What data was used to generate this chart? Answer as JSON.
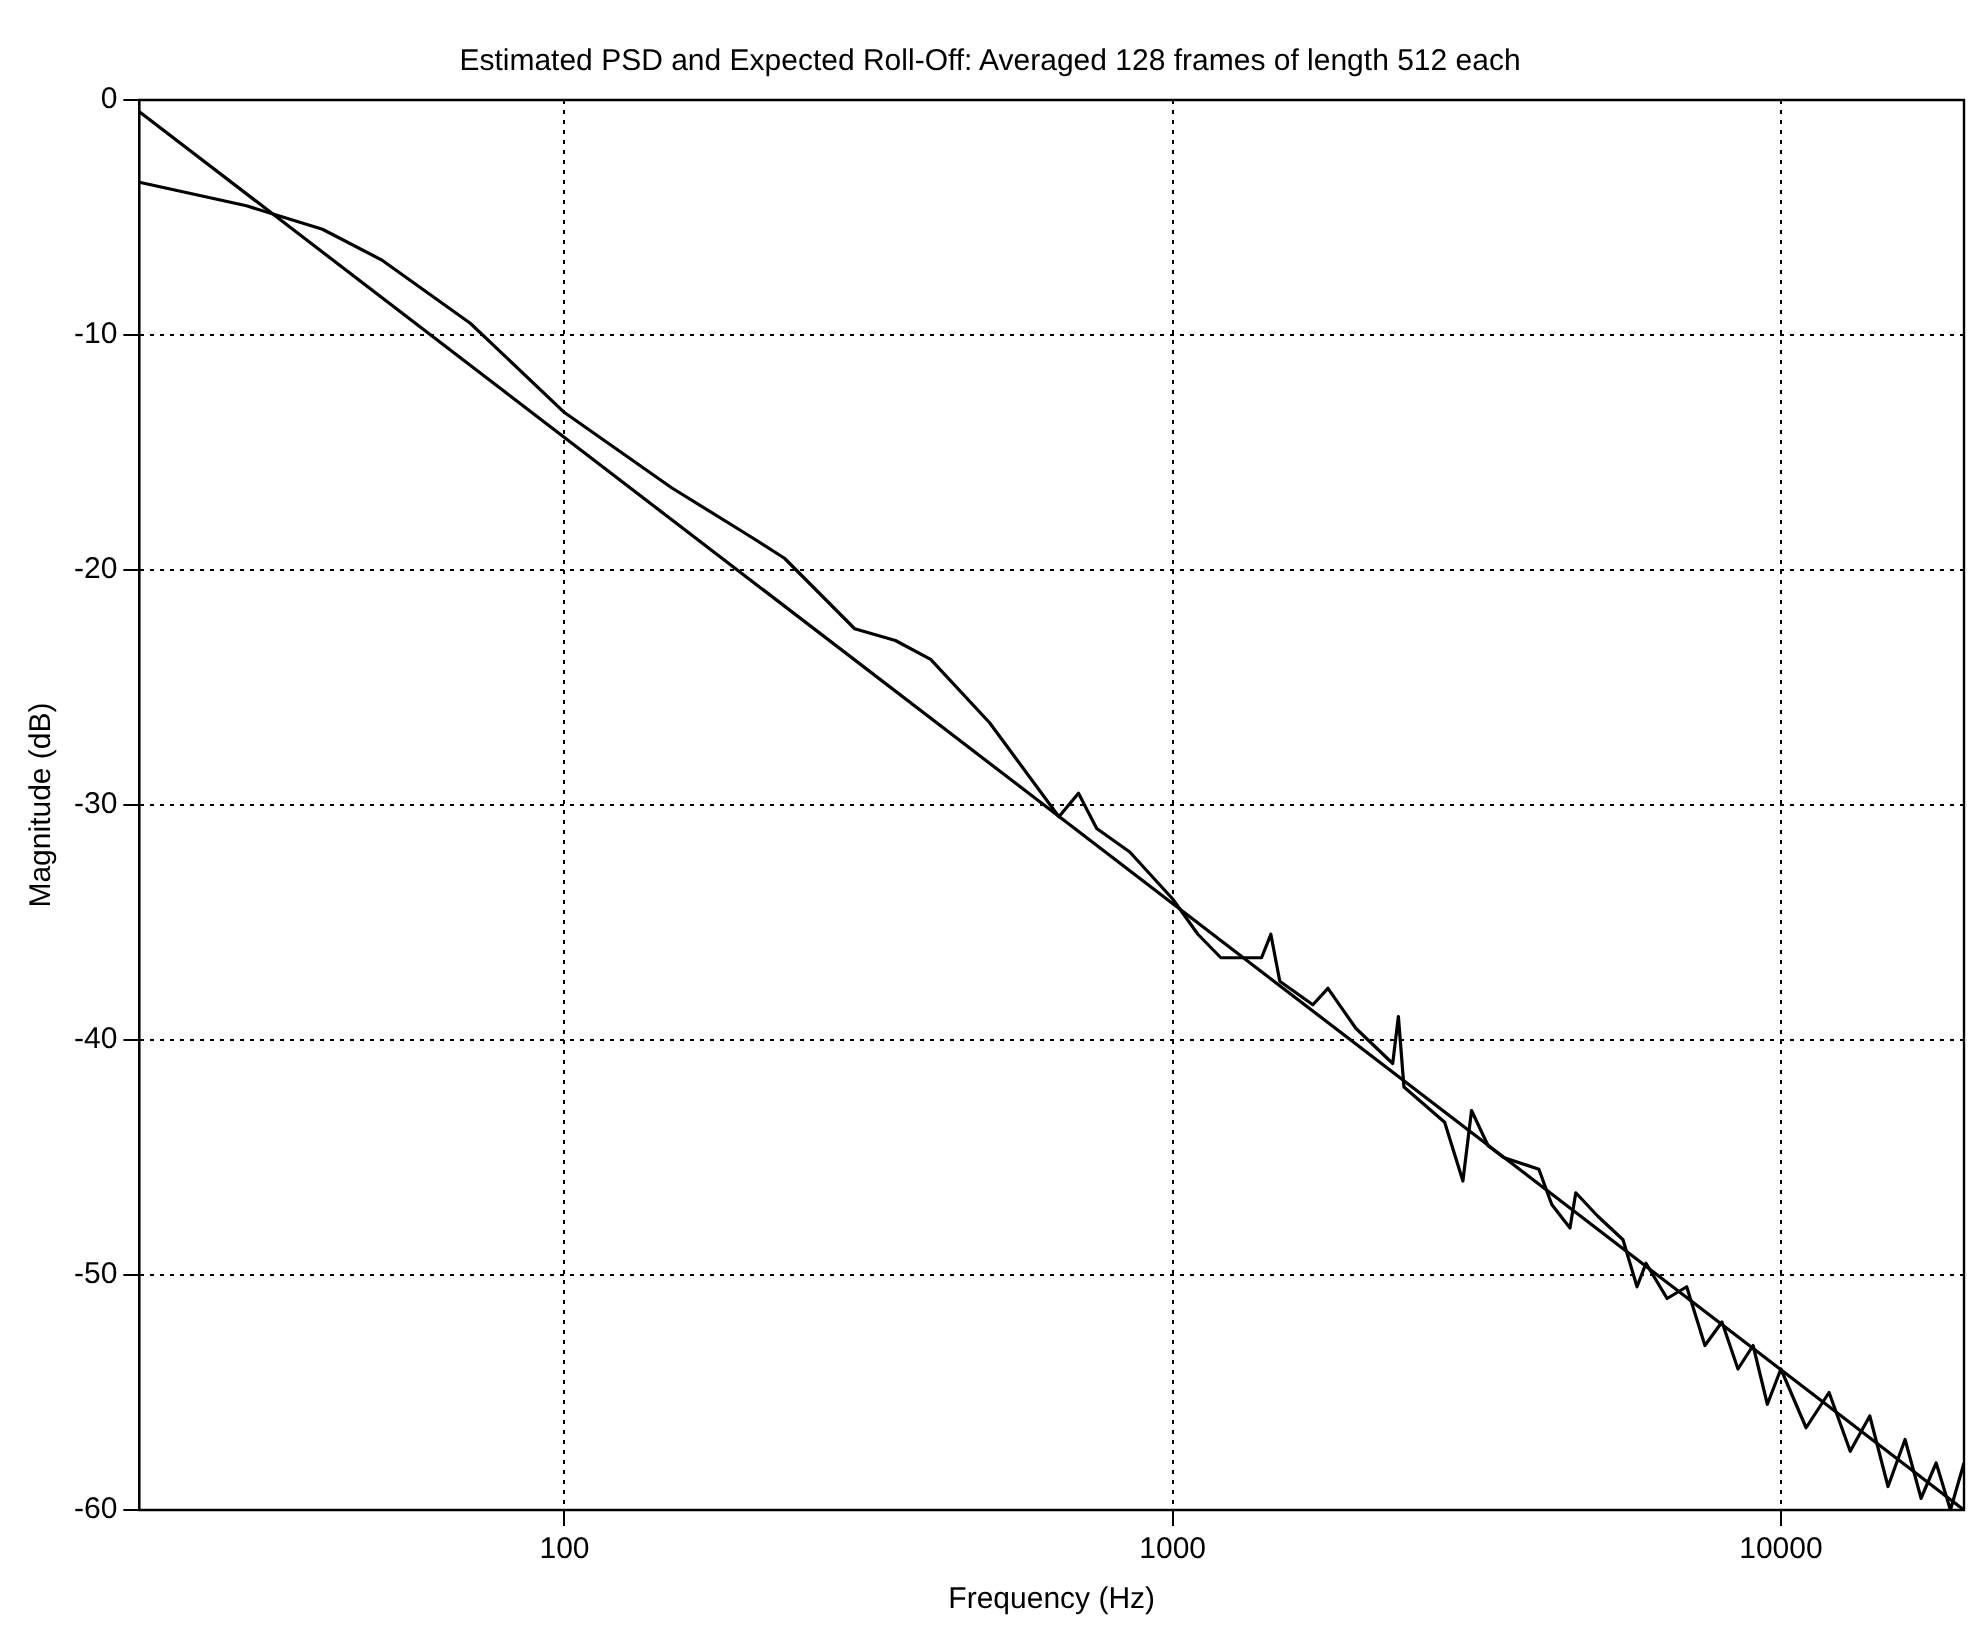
{
  "chart_data": {
    "type": "line",
    "title": "Estimated PSD and Expected Roll-Off: Averaged 128 frames of length 512 each",
    "xlabel": "Frequency (Hz)",
    "ylabel": "Magnitude (dB)",
    "log": "x",
    "xlim": [
      20,
      20000
    ],
    "ylim": [
      -60,
      0
    ],
    "xticks": [
      100,
      1000,
      10000
    ],
    "yticks": [
      0,
      -10,
      -20,
      -30,
      -40,
      -50,
      -60
    ],
    "grid": true,
    "marker": "none",
    "line_style": "solid",
    "series": [
      {
        "color": "#000000",
        "x": [
          20,
          30,
          40,
          50,
          70,
          100,
          150,
          200,
          230,
          300,
          350,
          400,
          500,
          650,
          700,
          750,
          850,
          1000,
          1100,
          1200,
          1400,
          1450,
          1500,
          1700,
          1800,
          2000,
          2300,
          2350,
          2400,
          2800,
          3000,
          3100,
          3300,
          3500,
          4000,
          4200,
          4500,
          4600,
          5000,
          5500,
          5800,
          6000,
          6500,
          7000,
          7500,
          8000,
          8500,
          9000,
          9500,
          10000,
          11000,
          12000,
          13000,
          14000,
          15000,
          16000,
          17000,
          18000,
          19000,
          20000
        ],
        "values": [
          -3.5,
          -4.5,
          -5.5,
          -6.8,
          -9.5,
          -13.3,
          -16.5,
          -18.5,
          -19.5,
          -22.5,
          -23,
          -23.8,
          -26.5,
          -30.5,
          -29.5,
          -31,
          -32,
          -34,
          -35.5,
          -36.5,
          -36.5,
          -35.5,
          -37.5,
          -38.5,
          -37.8,
          -39.5,
          -41,
          -39,
          -42,
          -43.5,
          -46,
          -43,
          -44.5,
          -45,
          -45.5,
          -47,
          -48,
          -46.5,
          -47.5,
          -48.5,
          -50.5,
          -49.5,
          -51,
          -50.5,
          -53,
          -52,
          -54,
          -53,
          -55.5,
          -54,
          -56.5,
          -55,
          -57.5,
          -56,
          -59,
          -57,
          -59.5,
          -58,
          -60,
          -58
        ]
      },
      {
        "color": "#000000",
        "x": [
          20,
          20000
        ],
        "values": [
          -0.5,
          -60
        ]
      }
    ]
  }
}
